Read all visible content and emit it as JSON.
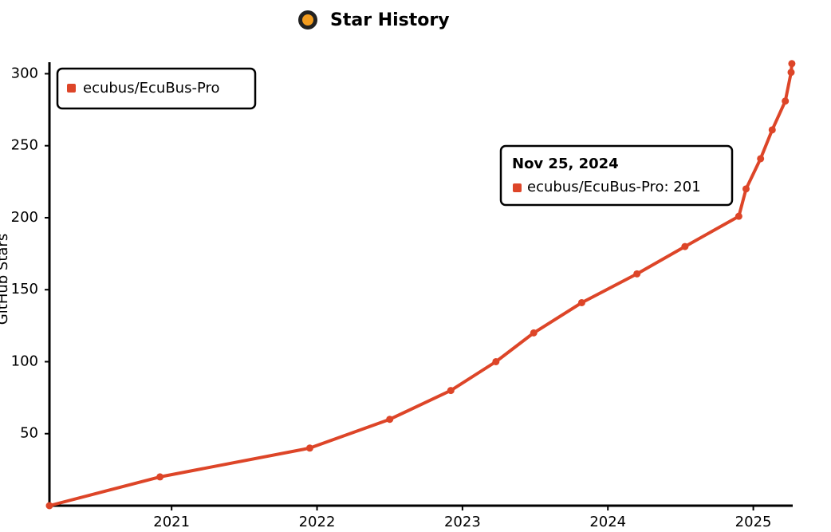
{
  "chart_data": {
    "type": "line",
    "title": "Star History",
    "y_label": "GitHub Stars",
    "x": [
      2020.16,
      2020.92,
      2021.95,
      2022.5,
      2022.92,
      2023.23,
      2023.49,
      2023.82,
      2024.2,
      2024.53,
      2024.9,
      2024.95,
      2025.05,
      2025.13,
      2025.22,
      2025.26,
      2025.265
    ],
    "series": [
      {
        "name": "ecubus/EcuBus-Pro",
        "color": "#dd4528",
        "values": [
          0,
          20,
          40,
          60,
          80,
          100,
          120,
          141,
          161,
          180,
          201,
          220,
          241,
          261,
          281,
          301,
          307
        ]
      }
    ],
    "xlim": [
      2020.16,
      2025.26
    ],
    "xticks": [
      2021,
      2022,
      2023,
      2024,
      2025
    ],
    "ylim": [
      0,
      308
    ],
    "yticks": [
      50,
      100,
      150,
      200,
      250,
      300
    ],
    "legend": "top-left",
    "tooltip": {
      "title": "Nov 25, 2024",
      "label": "ecubus/EcuBus-Pro: 201"
    }
  }
}
